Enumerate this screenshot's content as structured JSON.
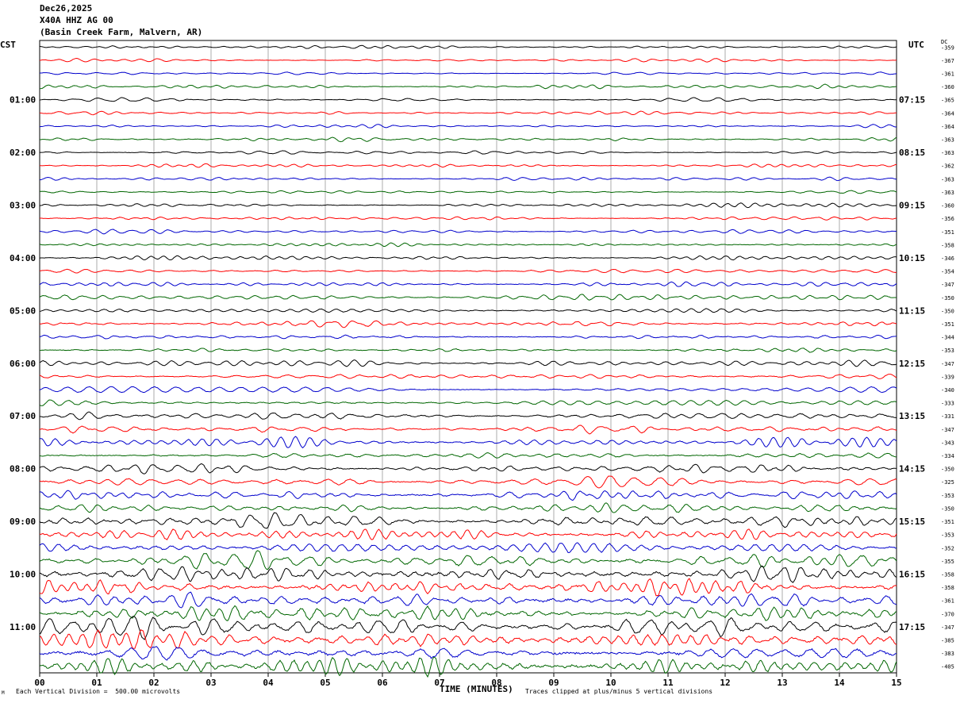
{
  "header": {
    "date": "Dec26,2025",
    "station": "X40A HHZ AG 00",
    "location": "(Basin Creek Farm, Malvern, AR)"
  },
  "left_axis": {
    "tz_label": "CST"
  },
  "right_axis": {
    "tz_label": "UTC",
    "dc_label": "DC"
  },
  "footer": {
    "xlabel": "TIME (MINUTES)",
    "scale_note": "Each Vertical Division =  500.00 microvolts",
    "clip_note": "Traces clipped at plus/minus 5 vertical divisions",
    "corner_mark": "M"
  },
  "chart_data": {
    "type": "line",
    "x_range": [
      0,
      15
    ],
    "x_ticks": [
      "00",
      "01",
      "02",
      "03",
      "04",
      "05",
      "06",
      "07",
      "08",
      "09",
      "10",
      "11",
      "12",
      "13",
      "14",
      "15"
    ],
    "trace_colors": [
      "#000000",
      "#ff0000",
      "#0000cc",
      "#006600"
    ],
    "hour_labels_left": [
      "01:00",
      "02:00",
      "03:00",
      "04:00",
      "05:00",
      "06:00",
      "07:00",
      "08:00",
      "09:00",
      "10:00",
      "11:00"
    ],
    "hour_labels_right": [
      "07:15",
      "08:15",
      "09:15",
      "10:15",
      "11:15",
      "12:15",
      "13:15",
      "14:15",
      "15:15",
      "16:15",
      "17:15"
    ],
    "dc_offsets": [
      "-359",
      "-367",
      "-361",
      "-360",
      "-365",
      "-364",
      "-364",
      "-363",
      "-363",
      "-362",
      "-363",
      "-363",
      "-360",
      "-356",
      "-351",
      "-358",
      "-346",
      "-354",
      "-347",
      "-350",
      "-350",
      "-351",
      "-344",
      "-353",
      "-347",
      "-339",
      "-340",
      "-333",
      "-331",
      "-347",
      "-343",
      "-334",
      "-350",
      "-325",
      "-353",
      "-350",
      "-351",
      "-353",
      "-352",
      "-355",
      "-358",
      "-358",
      "-361",
      "-370",
      "-347",
      "-385",
      "-383",
      "-405"
    ],
    "trace_relative_amplitude": [
      0.18,
      0.18,
      0.18,
      0.2,
      0.2,
      0.2,
      0.2,
      0.22,
      0.2,
      0.2,
      0.2,
      0.22,
      0.22,
      0.22,
      0.22,
      0.25,
      0.25,
      0.25,
      0.28,
      0.28,
      0.28,
      0.3,
      0.32,
      0.32,
      0.32,
      0.34,
      0.36,
      0.36,
      0.42,
      0.45,
      0.45,
      0.45,
      0.5,
      0.55,
      0.55,
      0.6,
      0.7,
      0.75,
      0.75,
      0.8,
      0.9,
      0.95,
      1.0,
      1.0,
      1.1,
      1.15,
      1.15,
      1.15
    ]
  }
}
